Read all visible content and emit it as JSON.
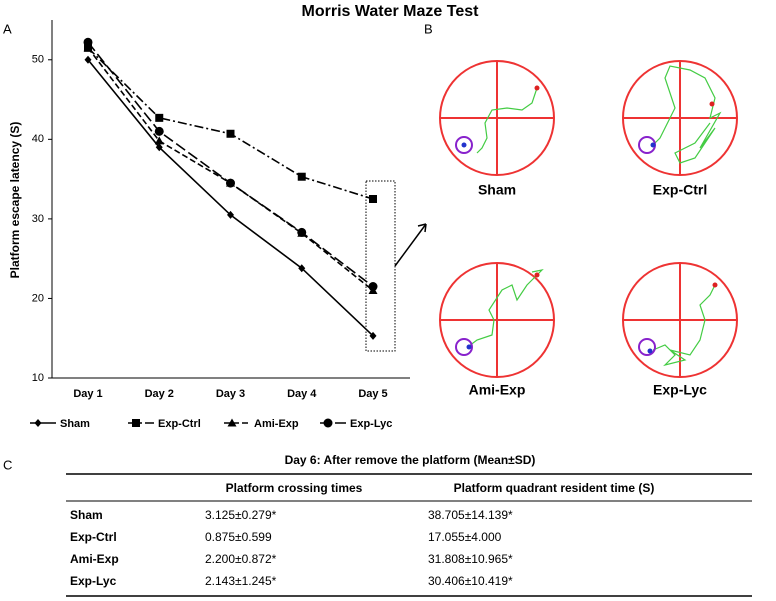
{
  "title": "Morris Water Maze Test",
  "panel_labels": [
    "A",
    "B",
    "C"
  ],
  "chart_data": {
    "type": "line",
    "y_label": "Platform escape latency (S)",
    "categories": [
      "Day 1",
      "Day 2",
      "Day 3",
      "Day 4",
      "Day 5"
    ],
    "series": [
      {
        "name": "Sham",
        "color": "#000000",
        "marker": "diamond",
        "line_style": "solid",
        "values": [
          50,
          39,
          30.5,
          23.8,
          15.3
        ]
      },
      {
        "name": "Exp-Ctrl",
        "color": "#000000",
        "marker": "square",
        "line_style": "dashdot",
        "values": [
          51.5,
          42.7,
          40.7,
          35.3,
          32.5
        ]
      },
      {
        "name": "Ami-Exp",
        "color": "#000000",
        "marker": "triangle",
        "line_style": "dashed",
        "values": [
          51.5,
          39.8,
          34.5,
          28.2,
          21
        ]
      },
      {
        "name": "Exp-Lyc",
        "color": "#000000",
        "marker": "circle",
        "line_style": "longdash",
        "values": [
          52.2,
          41,
          34.5,
          28.3,
          21.5
        ]
      }
    ],
    "ylim": [
      10,
      55
    ],
    "yticks": [
      10,
      20,
      30,
      40,
      50
    ],
    "grid": false,
    "legend": "bottom"
  },
  "swim_paths": {
    "labels": [
      "Sham",
      "Exp-Ctrl",
      "Ami-Exp",
      "Exp-Lyc"
    ]
  },
  "table": {
    "title": "Day 6: After remove the platform (Mean±SD)",
    "header": [
      "",
      "Platform crossing times",
      "Platform quadrant resident time (S)"
    ],
    "rows": [
      [
        "Sham",
        "3.125±0.279*",
        "38.705±14.139*"
      ],
      [
        "Exp-Ctrl",
        "0.875±0.599",
        "17.055±4.000"
      ],
      [
        "Ami-Exp",
        "2.200±0.872*",
        "31.808±10.965*"
      ],
      [
        "Exp-Lyc",
        "2.143±1.245*",
        "30.406±10.419*"
      ]
    ]
  }
}
